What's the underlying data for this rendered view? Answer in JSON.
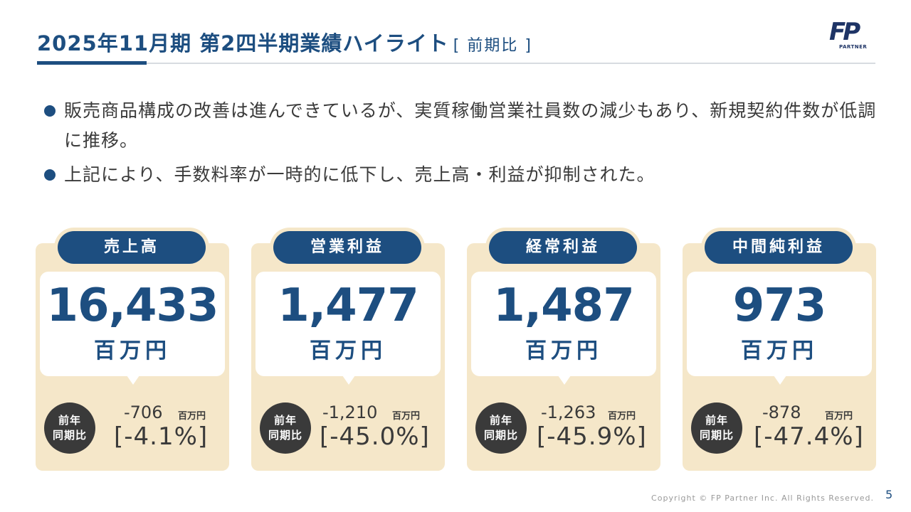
{
  "header": {
    "title": "2025年11月期 第2四半期業績ハイライト",
    "suffix": "[ 前期比 ]"
  },
  "logo": {
    "mark": "FP",
    "sub": "PARTNER"
  },
  "bullets": [
    "販売商品構成の改善は進んできているが、実質稼働営業社員数の減少もあり、新規契約件数が低調に推移。",
    "上記により、手数料率が一時的に低下し、売上高・利益が抑制された。"
  ],
  "cards": [
    {
      "label": "売上高",
      "value": "16,433",
      "unit": "百万円",
      "yoy_label_1": "前年",
      "yoy_label_2": "同期比",
      "diff": "-706",
      "diff_unit": "百万円",
      "pct": "[-4.1%]"
    },
    {
      "label": "営業利益",
      "value": "1,477",
      "unit": "百万円",
      "yoy_label_1": "前年",
      "yoy_label_2": "同期比",
      "diff": "-1,210",
      "diff_unit": "百万円",
      "pct": "[-45.0%]"
    },
    {
      "label": "経常利益",
      "value": "1,487",
      "unit": "百万円",
      "yoy_label_1": "前年",
      "yoy_label_2": "同期比",
      "diff": "-1,263",
      "diff_unit": "百万円",
      "pct": "[-45.9%]"
    },
    {
      "label": "中間純利益",
      "value": "973",
      "unit": "百万円",
      "yoy_label_1": "前年",
      "yoy_label_2": "同期比",
      "diff": "-878",
      "diff_unit": "百万円",
      "pct": "[-47.4%]"
    }
  ],
  "footer": {
    "copyright": "Copyright © FP Partner Inc. All Rights Reserved.",
    "page": "5"
  },
  "colors": {
    "primary": "#1d4e80",
    "card_bg": "#f5e7c9",
    "badge": "#3a3a3a"
  }
}
